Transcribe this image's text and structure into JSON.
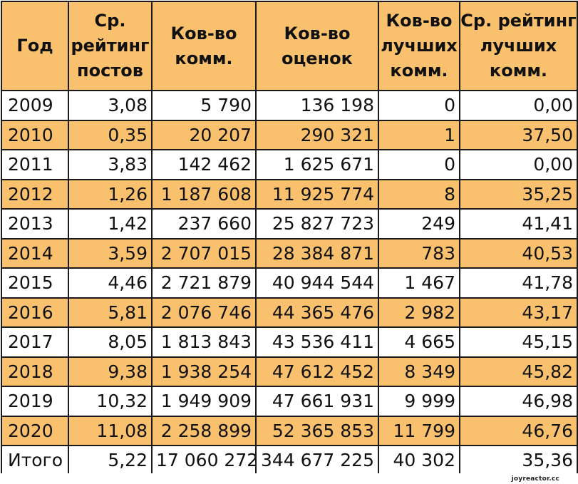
{
  "table": {
    "headers": [
      "Год",
      "Ср. рейтинг постов",
      "Ков-во комм.",
      "Ков-во оценок",
      "Ков-во лучших комм.",
      "Ср. рейтинг лучших комм."
    ],
    "rows": [
      [
        "2009",
        "3,08",
        "5 790",
        "136 198",
        "0",
        "0,00"
      ],
      [
        "2010",
        "0,35",
        "20 207",
        "290 321",
        "1",
        "37,50"
      ],
      [
        "2011",
        "3,83",
        "142 462",
        "1 625 671",
        "0",
        "0,00"
      ],
      [
        "2012",
        "1,26",
        "1 187 608",
        "11 925 774",
        "8",
        "35,25"
      ],
      [
        "2013",
        "1,42",
        "237 660",
        "25 827 723",
        "249",
        "41,41"
      ],
      [
        "2014",
        "3,59",
        "2 707 015",
        "28 384 871",
        "783",
        "40,53"
      ],
      [
        "2015",
        "4,46",
        "2 721 879",
        "40 944 544",
        "1 467",
        "41,78"
      ],
      [
        "2016",
        "5,81",
        "2 076 746",
        "44 365 476",
        "2 982",
        "43,17"
      ],
      [
        "2017",
        "8,05",
        "1 813 843",
        "43 536 411",
        "4 665",
        "45,15"
      ],
      [
        "2018",
        "9,38",
        "1 938 254",
        "47 612 452",
        "8 349",
        "45,82"
      ],
      [
        "2019",
        "10,32",
        "1 949 909",
        "47 661 931",
        "9 999",
        "46,98"
      ],
      [
        "2020",
        "11,08",
        "2 258 899",
        "52 365 853",
        "11 799",
        "46,76"
      ],
      [
        "Итого",
        "5,22",
        "17 060 272",
        "344 677 225",
        "40 302",
        "35,36"
      ]
    ]
  },
  "colors": {
    "highlight_row": "#f9c16d",
    "header_bg": "#f9c16d",
    "border": "#1a1a1a"
  },
  "watermark": "joyreactor.cc"
}
